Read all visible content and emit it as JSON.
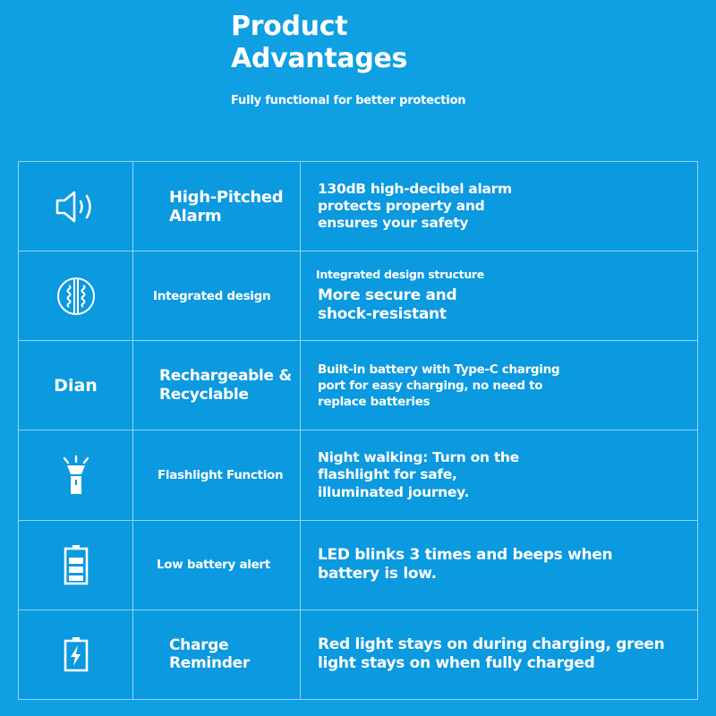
{
  "header": {
    "title_line1": "Product",
    "title_line2": "Advantages",
    "subtitle": "Fully functional for better protection"
  },
  "colors": {
    "background": "#0f9fe3",
    "cell": "#0b99df",
    "border": "#8fd6f6",
    "text": "#ffffff"
  },
  "rows": [
    {
      "icon": "speaker-icon",
      "name": "High-Pitched Alarm",
      "desc": "130dB high-decibel alarm protects property and ensures your safety"
    },
    {
      "icon": "integrated-design-icon",
      "name": "Integrated design",
      "desc_small": "Integrated design structure",
      "desc": "More secure and shock-resistant"
    },
    {
      "icon_text": "Dian",
      "name": "Rechargeable & Recyclable",
      "desc": "Built-in battery with Type-C charging port for easy charging, no need to replace batteries"
    },
    {
      "icon": "flashlight-icon",
      "name": "Flashlight Function",
      "desc": "Night walking: Turn on the flashlight for safe, illuminated journey."
    },
    {
      "icon": "battery-icon",
      "name": "Low battery alert",
      "desc": "LED blinks 3 times and beeps when battery is low."
    },
    {
      "icon": "charging-battery-icon",
      "name": "Charge Reminder",
      "desc": "Red light stays on during charging, green light stays on when fully charged"
    }
  ]
}
